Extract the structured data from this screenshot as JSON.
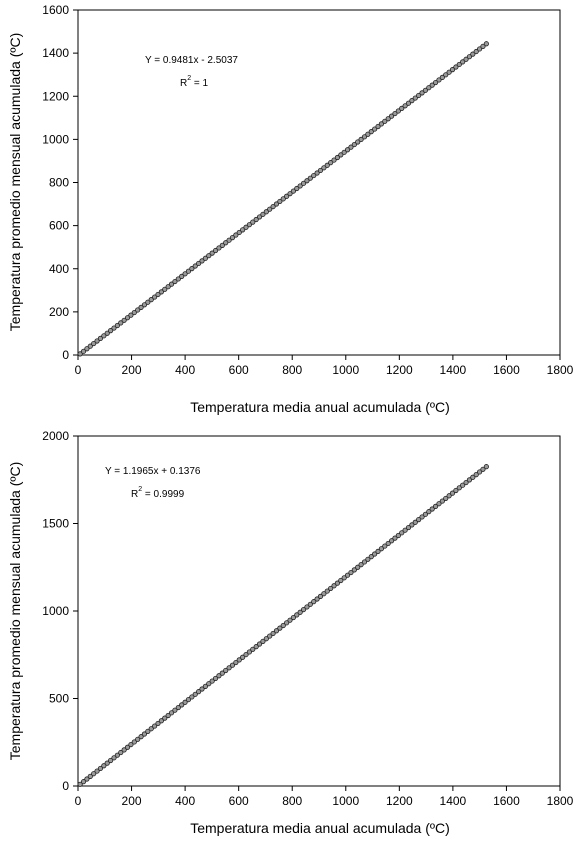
{
  "chart_data": [
    {
      "type": "scatter",
      "xlabel": "Temperatura media anual acumulada (ºC)",
      "ylabel": "Temperatura promedio mensual acumulada (ºC)",
      "xlim": [
        0,
        1800
      ],
      "ylim": [
        0,
        1600
      ],
      "xticks": [
        "0",
        "200",
        "400",
        "600",
        "800",
        "1000",
        "1200",
        "1400",
        "1600",
        "1800"
      ],
      "yticks": [
        "0",
        "200",
        "400",
        "600",
        "800",
        "1000",
        "1200",
        "1400",
        "1600"
      ],
      "equation": "Y = 0.9481x - 2.5037",
      "r2_prefix": "R",
      "r2_exp": "2",
      "r2_value": "= 1",
      "fit": {
        "slope": 0.9481,
        "intercept": -2.5037
      },
      "x_range_points": [
        8,
        1525
      ],
      "grid": false
    },
    {
      "type": "scatter",
      "xlabel": "Temperatura media anual acumulada (ºC)",
      "ylabel": "Temperatura promedio mensual acumulada (ºC)",
      "xlim": [
        0,
        1800
      ],
      "ylim": [
        0,
        2000
      ],
      "xticks": [
        "0",
        "200",
        "400",
        "600",
        "800",
        "1000",
        "1200",
        "1400",
        "1600",
        "1800"
      ],
      "yticks": [
        "0",
        "500",
        "1000",
        "1500",
        "2000"
      ],
      "equation": "Y = 1.1965x + 0.1376",
      "r2_prefix": "R",
      "r2_exp": "2",
      "r2_value": "= 0.9999",
      "fit": {
        "slope": 1.1965,
        "intercept": 0.1376
      },
      "x_range_points": [
        8,
        1525
      ],
      "grid": false
    }
  ]
}
